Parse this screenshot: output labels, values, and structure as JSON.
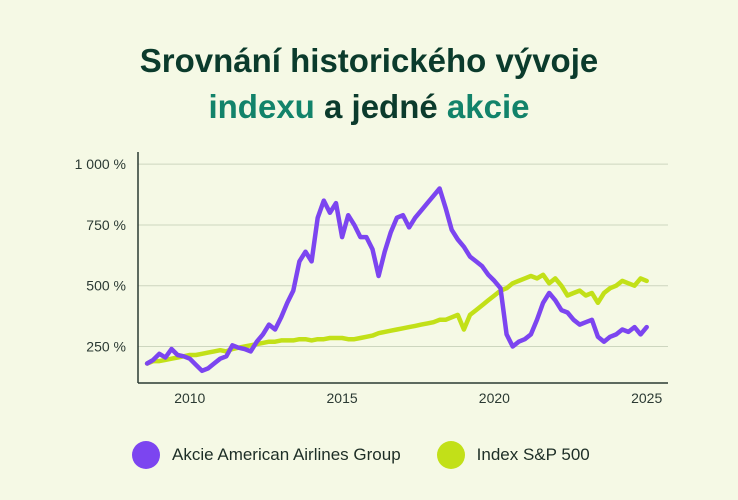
{
  "title": {
    "line1": "Srovnání historického vývoje",
    "line2_accent_a": "indexu",
    "line2_mid": " a jedné ",
    "line2_accent_b": "akcie"
  },
  "colors": {
    "background": "#f5f9e5",
    "title": "#0b3b2c",
    "accent": "#12836a",
    "aal": "#7c45f0",
    "sp500": "#c2e018",
    "axis": "#2b3a33",
    "grid": "#cdd6bf"
  },
  "chart_data": {
    "type": "line",
    "title": "Srovnání historického vývoje indexu a jedné akcie",
    "xlabel": "",
    "ylabel": "",
    "xlim": [
      2008.3,
      2025.7
    ],
    "ylim": [
      100,
      1050
    ],
    "x_ticks": [
      2010,
      2015,
      2020,
      2025
    ],
    "x_tick_labels": [
      "2010",
      "2015",
      "2020",
      "2025"
    ],
    "y_ticks": [
      250,
      500,
      750,
      1000
    ],
    "y_tick_labels": [
      "250 %",
      "500 %",
      "750 %",
      "1 000 %"
    ],
    "grid": "horizontal",
    "legend_position": "bottom",
    "series": [
      {
        "name": "Akcie American Airlines Group",
        "color": "#7c45f0",
        "x": [
          2008.6,
          2008.8,
          2009.0,
          2009.2,
          2009.4,
          2009.6,
          2009.8,
          2010.0,
          2010.2,
          2010.4,
          2010.6,
          2010.8,
          2011.0,
          2011.2,
          2011.4,
          2011.6,
          2011.8,
          2012.0,
          2012.2,
          2012.4,
          2012.6,
          2012.8,
          2013.0,
          2013.2,
          2013.4,
          2013.6,
          2013.8,
          2014.0,
          2014.2,
          2014.4,
          2014.6,
          2014.8,
          2015.0,
          2015.2,
          2015.4,
          2015.6,
          2015.8,
          2016.0,
          2016.2,
          2016.4,
          2016.6,
          2016.8,
          2017.0,
          2017.2,
          2017.4,
          2017.6,
          2017.8,
          2018.0,
          2018.2,
          2018.4,
          2018.6,
          2018.8,
          2019.0,
          2019.2,
          2019.4,
          2019.6,
          2019.8,
          2020.0,
          2020.2,
          2020.4,
          2020.6,
          2020.8,
          2021.0,
          2021.2,
          2021.4,
          2021.6,
          2021.8,
          2022.0,
          2022.2,
          2022.4,
          2022.6,
          2022.8,
          2023.0,
          2023.2,
          2023.4,
          2023.6,
          2023.8,
          2024.0,
          2024.2,
          2024.4,
          2024.6,
          2024.8,
          2025.0
        ],
        "y": [
          180,
          195,
          220,
          205,
          240,
          215,
          210,
          200,
          175,
          150,
          160,
          180,
          200,
          210,
          255,
          245,
          240,
          230,
          270,
          300,
          340,
          320,
          370,
          430,
          480,
          600,
          640,
          600,
          780,
          850,
          800,
          840,
          700,
          790,
          750,
          700,
          700,
          650,
          540,
          640,
          720,
          780,
          790,
          740,
          780,
          810,
          840,
          870,
          900,
          820,
          730,
          690,
          660,
          620,
          600,
          580,
          545,
          520,
          490,
          300,
          250,
          270,
          280,
          300,
          360,
          430,
          470,
          440,
          400,
          390,
          360,
          340,
          350,
          360,
          290,
          270,
          290,
          300,
          320,
          310,
          330,
          300,
          330
        ]
      },
      {
        "name": "Index S&P 500",
        "color": "#c2e018",
        "x": [
          2008.6,
          2008.8,
          2009.0,
          2009.2,
          2009.4,
          2009.6,
          2009.8,
          2010.0,
          2010.2,
          2010.4,
          2010.6,
          2010.8,
          2011.0,
          2011.2,
          2011.4,
          2011.6,
          2011.8,
          2012.0,
          2012.2,
          2012.4,
          2012.6,
          2012.8,
          2013.0,
          2013.2,
          2013.4,
          2013.6,
          2013.8,
          2014.0,
          2014.2,
          2014.4,
          2014.6,
          2014.8,
          2015.0,
          2015.2,
          2015.4,
          2015.6,
          2015.8,
          2016.0,
          2016.2,
          2016.4,
          2016.6,
          2016.8,
          2017.0,
          2017.2,
          2017.4,
          2017.6,
          2017.8,
          2018.0,
          2018.2,
          2018.4,
          2018.6,
          2018.8,
          2019.0,
          2019.2,
          2019.4,
          2019.6,
          2019.8,
          2020.0,
          2020.2,
          2020.4,
          2020.6,
          2020.8,
          2021.0,
          2021.2,
          2021.4,
          2021.6,
          2021.8,
          2022.0,
          2022.2,
          2022.4,
          2022.6,
          2022.8,
          2023.0,
          2023.2,
          2023.4,
          2023.6,
          2023.8,
          2024.0,
          2024.2,
          2024.4,
          2024.6,
          2024.8,
          2025.0
        ],
        "y": [
          180,
          190,
          190,
          195,
          200,
          205,
          210,
          215,
          215,
          220,
          225,
          230,
          235,
          230,
          240,
          245,
          250,
          255,
          260,
          265,
          270,
          270,
          275,
          275,
          275,
          280,
          280,
          275,
          280,
          280,
          285,
          285,
          285,
          280,
          280,
          285,
          290,
          295,
          305,
          310,
          315,
          320,
          325,
          330,
          335,
          340,
          345,
          350,
          360,
          360,
          370,
          380,
          320,
          380,
          400,
          420,
          440,
          460,
          480,
          490,
          510,
          520,
          530,
          540,
          530,
          545,
          510,
          530,
          500,
          460,
          470,
          480,
          460,
          470,
          430,
          470,
          490,
          500,
          520,
          510,
          500,
          530,
          520
        ]
      }
    ]
  }
}
